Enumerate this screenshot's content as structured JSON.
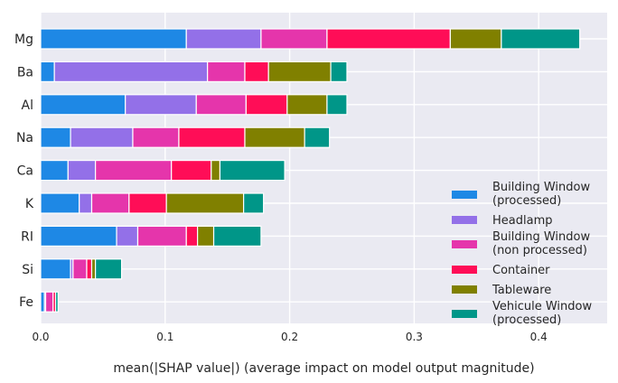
{
  "chart_data": {
    "type": "bar",
    "orientation": "horizontal",
    "stacked": true,
    "title": "",
    "xlabel": "mean(|SHAP value|) (average impact on model output magnitude)",
    "ylabel": "",
    "xlim": [
      0,
      0.455
    ],
    "xticks": [
      0.0,
      0.1,
      0.2,
      0.3,
      0.4
    ],
    "xtick_labels": [
      "0.0",
      "0.1",
      "0.2",
      "0.3",
      "0.4"
    ],
    "grid": true,
    "legend_position": "right",
    "categories": [
      "Mg",
      "Ba",
      "Al",
      "Na",
      "Ca",
      "K",
      "RI",
      "Si",
      "Fe"
    ],
    "series": [
      {
        "name": "Building Window (processed)",
        "label_lines": [
          "Building Window",
          "(processed)"
        ],
        "color": "#1e88e5",
        "values": [
          0.117,
          0.011,
          0.068,
          0.024,
          0.022,
          0.031,
          0.061,
          0.024,
          0.003
        ]
      },
      {
        "name": "Headlamp",
        "label_lines": [
          "Headlamp"
        ],
        "color": "#9370e8",
        "values": [
          0.06,
          0.123,
          0.057,
          0.05,
          0.022,
          0.01,
          0.017,
          0.002,
          0.001
        ]
      },
      {
        "name": "Building Window (non processed)",
        "label_lines": [
          "Building Window",
          "(non processed)"
        ],
        "color": "#e535ab",
        "values": [
          0.053,
          0.03,
          0.04,
          0.037,
          0.061,
          0.03,
          0.039,
          0.011,
          0.006
        ]
      },
      {
        "name": "Container",
        "label_lines": [
          "Container"
        ],
        "color": "#ff0d57",
        "values": [
          0.099,
          0.019,
          0.033,
          0.053,
          0.032,
          0.03,
          0.009,
          0.004,
          0.002
        ]
      },
      {
        "name": "Tableware",
        "label_lines": [
          "Tableware"
        ],
        "color": "#808000",
        "values": [
          0.041,
          0.05,
          0.032,
          0.048,
          0.007,
          0.062,
          0.013,
          0.003,
          0.0
        ]
      },
      {
        "name": "Vehicule Window (processed)",
        "label_lines": [
          "Vehicule Window",
          "(processed)"
        ],
        "color": "#009688",
        "values": [
          0.063,
          0.013,
          0.016,
          0.02,
          0.052,
          0.016,
          0.038,
          0.021,
          0.002
        ]
      }
    ]
  }
}
